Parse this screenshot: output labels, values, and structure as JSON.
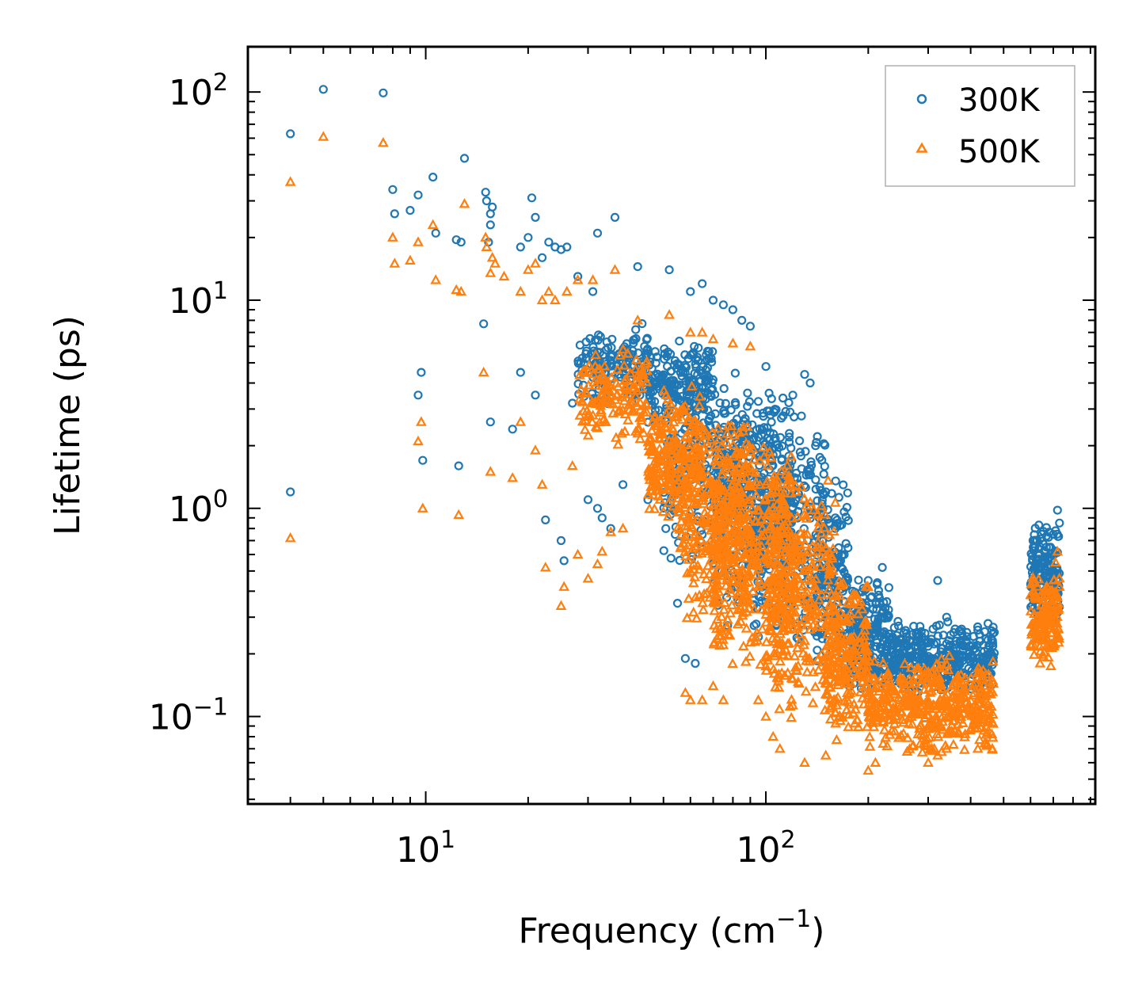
{
  "chart_data": {
    "type": "scatter",
    "title": "",
    "xlabel": "Frequency (cm",
    "xlabel_sup": "−1",
    "xlabel_close": ")",
    "ylabel": "Lifetime (ps)",
    "xscale": "log",
    "yscale": "log",
    "xlim": [
      3.0,
      930
    ],
    "ylim": [
      0.038,
      165
    ],
    "x_ticks": [
      {
        "value": 10,
        "base": "10",
        "exp": "1"
      },
      {
        "value": 100,
        "base": "10",
        "exp": "2"
      }
    ],
    "y_ticks": [
      {
        "value": 0.1,
        "base": "10",
        "exp": "−1"
      },
      {
        "value": 1,
        "base": "10",
        "exp": "0"
      },
      {
        "value": 10,
        "base": "10",
        "exp": "1"
      },
      {
        "value": 100,
        "base": "10",
        "exp": "2"
      }
    ],
    "legend_position": "top-right",
    "series": [
      {
        "name": "300K",
        "marker": "circle",
        "color": "#1f77b4",
        "points": [
          [
            4.0,
            63
          ],
          [
            5.0,
            103
          ],
          [
            7.5,
            99
          ],
          [
            8.0,
            34
          ],
          [
            8.1,
            26
          ],
          [
            9.0,
            27
          ],
          [
            9.5,
            32
          ],
          [
            10.5,
            39
          ],
          [
            10.7,
            21
          ],
          [
            12.3,
            19.5
          ],
          [
            12.7,
            19
          ],
          [
            13.0,
            48
          ],
          [
            15.0,
            33
          ],
          [
            15.1,
            30
          ],
          [
            15.5,
            26
          ],
          [
            15.7,
            28
          ],
          [
            15.5,
            23
          ],
          [
            15.3,
            19
          ],
          [
            14.8,
            7.7
          ],
          [
            19.0,
            18
          ],
          [
            20.0,
            20
          ],
          [
            20.5,
            31
          ],
          [
            21.0,
            25
          ],
          [
            22.0,
            16
          ],
          [
            23.0,
            19
          ],
          [
            24.0,
            18
          ],
          [
            25.0,
            17.5
          ],
          [
            26.0,
            18
          ],
          [
            28.0,
            13
          ],
          [
            31.0,
            11
          ],
          [
            32.0,
            21
          ],
          [
            36.0,
            25
          ],
          [
            42.0,
            14.5
          ],
          [
            52.0,
            14
          ],
          [
            60.0,
            11
          ],
          [
            65.0,
            12
          ],
          [
            70.0,
            10
          ],
          [
            75.0,
            9.5
          ],
          [
            80.0,
            9
          ],
          [
            85.0,
            8
          ],
          [
            90.0,
            7.5
          ],
          [
            4.0,
            1.2
          ],
          [
            9.5,
            3.5
          ],
          [
            9.7,
            4.5
          ],
          [
            9.8,
            1.7
          ],
          [
            12.5,
            1.6
          ],
          [
            15.5,
            2.6
          ],
          [
            18.0,
            2.4
          ],
          [
            19.0,
            4.5
          ],
          [
            21.0,
            3.5
          ],
          [
            22.5,
            0.88
          ],
          [
            25.0,
            0.7
          ],
          [
            25.5,
            0.56
          ],
          [
            27.0,
            3.2
          ],
          [
            30.0,
            1.1
          ],
          [
            32.0,
            1.0
          ],
          [
            33.0,
            0.9
          ],
          [
            35.0,
            0.8
          ],
          [
            38.0,
            1.3
          ],
          [
            45.0,
            1.1
          ],
          [
            55.0,
            0.35
          ],
          [
            58.0,
            0.19
          ],
          [
            62.0,
            0.18
          ],
          [
            100.0,
            4.8
          ],
          [
            120.0,
            3.5
          ],
          [
            130.0,
            4.4
          ],
          [
            135.0,
            4.0
          ],
          [
            140.0,
            2.0
          ],
          [
            150.0,
            1.2
          ],
          [
            160.0,
            0.8
          ],
          [
            170.0,
            0.6
          ],
          [
            180.0,
            0.4
          ],
          [
            200.0,
            0.45
          ],
          [
            220.0,
            0.52
          ],
          [
            240.0,
            0.2
          ],
          [
            260.0,
            0.22
          ],
          [
            280.0,
            0.25
          ],
          [
            320.0,
            0.45
          ],
          [
            340.0,
            0.3
          ],
          [
            380.0,
            0.22
          ],
          [
            420.0,
            0.26
          ],
          [
            450.0,
            0.28
          ],
          [
            640.0,
            0.45
          ],
          [
            660.0,
            0.55
          ],
          [
            680.0,
            0.65
          ],
          [
            700.0,
            0.75
          ],
          [
            720.0,
            0.98
          ],
          [
            730.0,
            0.85
          ]
        ],
        "bands": [
          {
            "x": [
              28,
              45
            ],
            "y": [
              3.0,
              8.0
            ],
            "n": 150
          },
          {
            "x": [
              45,
              70
            ],
            "y": [
              2.5,
              6.5
            ],
            "n": 180
          },
          {
            "x": [
              50,
              90
            ],
            "y": [
              0.5,
              5.0
            ],
            "n": 260
          },
          {
            "x": [
              70,
              120
            ],
            "y": [
              0.25,
              4.0
            ],
            "n": 320
          },
          {
            "x": [
              90,
              150
            ],
            "y": [
              0.2,
              3.5
            ],
            "n": 260
          },
          {
            "x": [
              140,
              175
            ],
            "y": [
              0.15,
              1.5
            ],
            "n": 150
          },
          {
            "x": [
              175,
              230
            ],
            "y": [
              0.12,
              0.5
            ],
            "n": 200
          },
          {
            "x": [
              230,
              470
            ],
            "y": [
              0.12,
              0.3
            ],
            "n": 360
          },
          {
            "x": [
              600,
              730
            ],
            "y": [
              0.28,
              0.85
            ],
            "n": 150
          }
        ]
      },
      {
        "name": "500K",
        "marker": "triangle",
        "color": "#ff7f0e",
        "points": [
          [
            4.0,
            37
          ],
          [
            5.0,
            61
          ],
          [
            7.5,
            57
          ],
          [
            8.0,
            20
          ],
          [
            8.1,
            15
          ],
          [
            9.0,
            15.5
          ],
          [
            9.5,
            19
          ],
          [
            10.5,
            23
          ],
          [
            10.7,
            12.5
          ],
          [
            12.3,
            11.2
          ],
          [
            12.7,
            11
          ],
          [
            13.0,
            29
          ],
          [
            15.0,
            20
          ],
          [
            15.1,
            18
          ],
          [
            15.5,
            13.5
          ],
          [
            15.7,
            16
          ],
          [
            16.0,
            15
          ],
          [
            17.0,
            13
          ],
          [
            19.0,
            11
          ],
          [
            20.0,
            14
          ],
          [
            21.0,
            15
          ],
          [
            22.0,
            10
          ],
          [
            23.0,
            11
          ],
          [
            24.0,
            10
          ],
          [
            26.0,
            11
          ],
          [
            28.0,
            12.5
          ],
          [
            31.0,
            12.5
          ],
          [
            36.0,
            14
          ],
          [
            42.0,
            8
          ],
          [
            52.0,
            8.5
          ],
          [
            60.0,
            7
          ],
          [
            65.0,
            7
          ],
          [
            70.0,
            6.5
          ],
          [
            80.0,
            6.2
          ],
          [
            90.0,
            6.0
          ],
          [
            4.0,
            0.72
          ],
          [
            9.5,
            2.1
          ],
          [
            9.7,
            2.6
          ],
          [
            9.8,
            1.0
          ],
          [
            12.5,
            0.93
          ],
          [
            14.8,
            4.5
          ],
          [
            15.5,
            1.5
          ],
          [
            18.0,
            1.4
          ],
          [
            19.0,
            2.6
          ],
          [
            21.0,
            1.9
          ],
          [
            22.0,
            1.3
          ],
          [
            22.5,
            0.52
          ],
          [
            25.0,
            0.34
          ],
          [
            25.5,
            0.42
          ],
          [
            27.0,
            1.6
          ],
          [
            28.0,
            0.6
          ],
          [
            30.0,
            0.46
          ],
          [
            32.0,
            0.54
          ],
          [
            33.0,
            0.62
          ],
          [
            35.0,
            0.77
          ],
          [
            38.0,
            0.8
          ],
          [
            58.0,
            0.13
          ],
          [
            60.0,
            0.12
          ],
          [
            65.0,
            0.12
          ],
          [
            70.0,
            0.14
          ],
          [
            75.0,
            0.12
          ],
          [
            95.0,
            0.12
          ],
          [
            100.0,
            0.1
          ],
          [
            105.0,
            0.08
          ],
          [
            110.0,
            0.07
          ],
          [
            130.0,
            0.06
          ],
          [
            150.0,
            0.065
          ],
          [
            200.0,
            0.055
          ],
          [
            210.0,
            0.06
          ],
          [
            300.0,
            0.06
          ],
          [
            320.0,
            0.065
          ],
          [
            340.0,
            0.07
          ],
          [
            420.0,
            0.07
          ],
          [
            640.0,
            0.18
          ],
          [
            680.0,
            0.22
          ],
          [
            710.0,
            0.55
          ],
          [
            720.0,
            0.62
          ],
          [
            730.0,
            0.42
          ]
        ],
        "bands": [
          {
            "x": [
              28,
              45
            ],
            "y": [
              2.0,
              6.0
            ],
            "n": 150
          },
          {
            "x": [
              45,
              65
            ],
            "y": [
              0.8,
              4.0
            ],
            "n": 220
          },
          {
            "x": [
              55,
              90
            ],
            "y": [
              0.25,
              3.0
            ],
            "n": 320
          },
          {
            "x": [
              70,
              120
            ],
            "y": [
              0.15,
              2.5
            ],
            "n": 380
          },
          {
            "x": [
              100,
              160
            ],
            "y": [
              0.08,
              1.8
            ],
            "n": 320
          },
          {
            "x": [
              150,
              200
            ],
            "y": [
              0.07,
              0.5
            ],
            "n": 220
          },
          {
            "x": [
              200,
              470
            ],
            "y": [
              0.065,
              0.2
            ],
            "n": 460
          },
          {
            "x": [
              600,
              730
            ],
            "y": [
              0.17,
              0.5
            ],
            "n": 150
          }
        ]
      }
    ]
  }
}
